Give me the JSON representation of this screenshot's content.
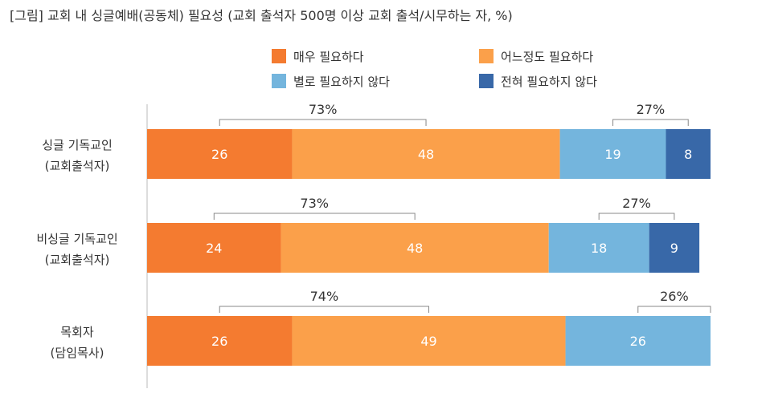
{
  "chart_data": {
    "type": "bar",
    "orientation": "horizontal",
    "stacked": true,
    "title": "[그림] 교회 내 싱글예배(공동체) 필요성 (교회 출석자 500명 이상 교회 출석/시무하는 자, %)",
    "categories": [
      [
        "싱글 기독교인",
        "(교회출석자)"
      ],
      [
        "비싱글 기독교인",
        "(교회출석자)"
      ],
      [
        "목회자",
        "(담임목사)"
      ]
    ],
    "series": [
      {
        "name": "매우 필요하다",
        "color": "#F47B30",
        "values": [
          26,
          24,
          26
        ]
      },
      {
        "name": "어느정도 필요하다",
        "color": "#FBA04A",
        "values": [
          48,
          48,
          49
        ]
      },
      {
        "name": "별로 필요하지 않다",
        "color": "#74B5DD",
        "values": [
          19,
          18,
          26
        ]
      },
      {
        "name": "전혀 필요하지 않다",
        "color": "#3868A8",
        "values": [
          8,
          9,
          0
        ]
      }
    ],
    "positive_totals": [
      "73%",
      "73%",
      "74%"
    ],
    "negative_totals": [
      "27%",
      "27%",
      "26%"
    ],
    "legend": "top",
    "xlim": [
      0,
      101
    ],
    "grid": false
  }
}
